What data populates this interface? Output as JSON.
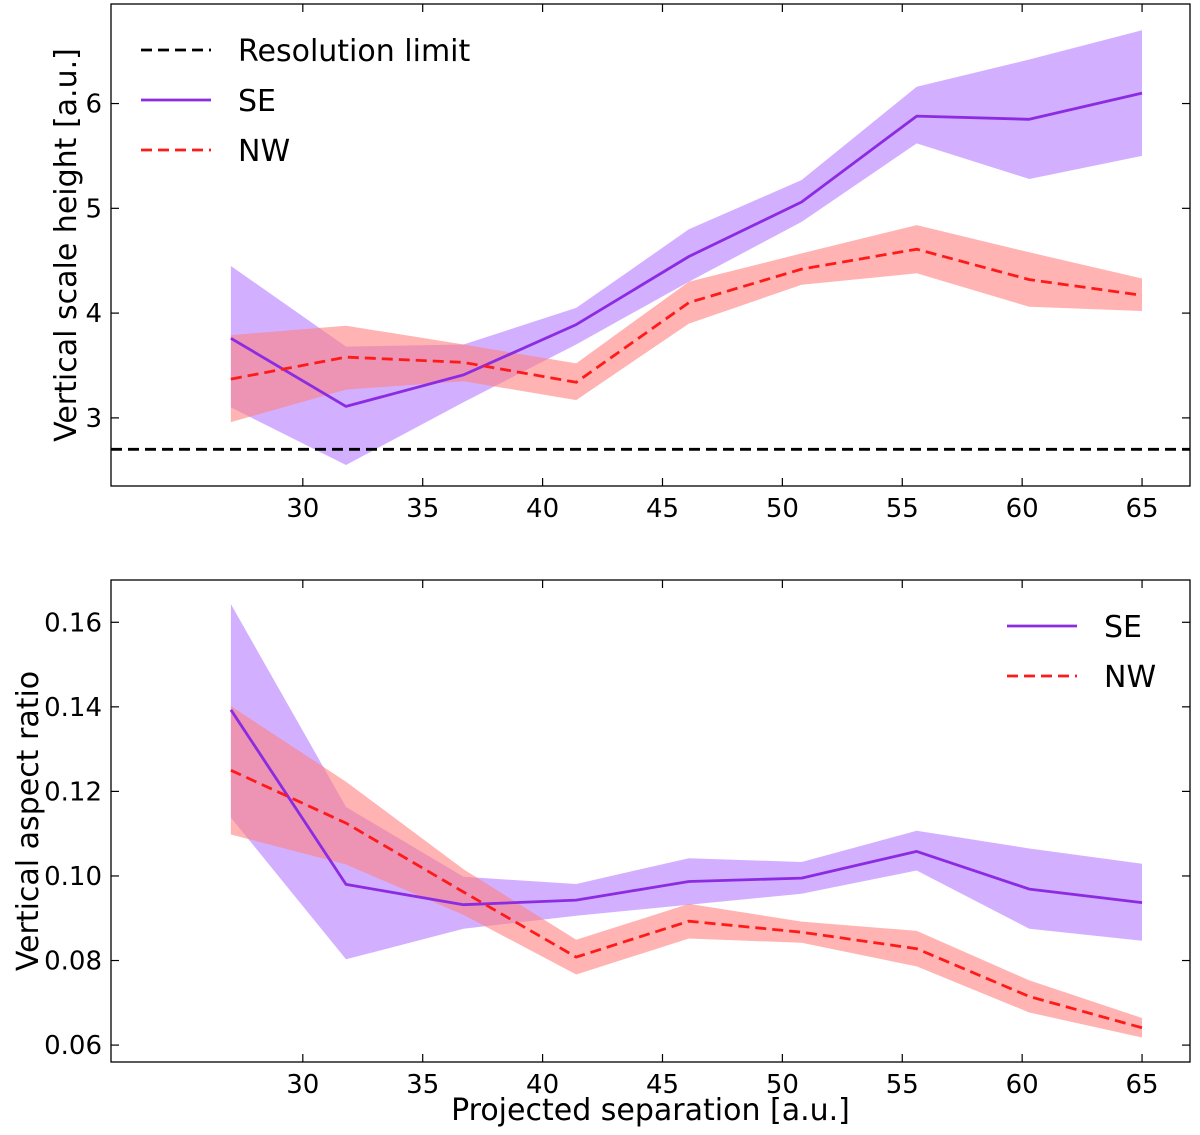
{
  "chart_data": [
    {
      "type": "line",
      "title": "",
      "xlabel": "",
      "ylabel": "Vertical scale height [a.u.]",
      "xlim": [
        22,
        67
      ],
      "ylim": [
        2.35,
        6.95
      ],
      "xticks": [
        30,
        35,
        40,
        45,
        50,
        55,
        60,
        65
      ],
      "xtick_labels": [
        "30",
        "35",
        "40",
        "45",
        "50",
        "55",
        "60",
        "65"
      ],
      "yticks": [
        3,
        4,
        5,
        6
      ],
      "ytick_labels": [
        "3",
        "4",
        "5",
        "6"
      ],
      "grid": false,
      "legend": {
        "position": "top-left",
        "entries": [
          "Resolution limit",
          "SE",
          "NW"
        ]
      },
      "hline": {
        "name": "Resolution limit",
        "y": 2.7,
        "color": "#000000",
        "style": "dashed"
      },
      "x": [
        27.0,
        31.8,
        36.7,
        41.4,
        46.1,
        50.8,
        55.6,
        60.3,
        65.0
      ],
      "series": [
        {
          "name": "SE",
          "color": "#8b2be2",
          "band_color": "#b57cff",
          "style": "solid",
          "values": [
            3.76,
            3.11,
            3.41,
            3.89,
            4.54,
            5.06,
            5.88,
            5.85,
            6.1
          ],
          "lower": [
            3.1,
            2.55,
            3.15,
            3.7,
            4.3,
            4.87,
            5.62,
            5.28,
            5.5
          ],
          "upper": [
            4.45,
            3.68,
            3.7,
            4.05,
            4.8,
            5.27,
            6.16,
            6.42,
            6.7
          ]
        },
        {
          "name": "NW",
          "color": "#ff1a1a",
          "band_color": "#ff8080",
          "style": "dashed",
          "values": [
            3.37,
            3.58,
            3.53,
            3.34,
            4.1,
            4.42,
            4.61,
            4.32,
            4.17
          ],
          "lower": [
            2.96,
            3.27,
            3.35,
            3.17,
            3.9,
            4.27,
            4.38,
            4.06,
            4.02
          ],
          "upper": [
            3.79,
            3.88,
            3.7,
            3.52,
            4.3,
            4.57,
            4.84,
            4.58,
            4.33
          ]
        }
      ]
    },
    {
      "type": "line",
      "title": "",
      "xlabel": "Projected separation [a.u.]",
      "ylabel": "Vertical aspect ratio",
      "xlim": [
        22,
        67
      ],
      "ylim": [
        0.056,
        0.17
      ],
      "xticks": [
        30,
        35,
        40,
        45,
        50,
        55,
        60,
        65
      ],
      "xtick_labels": [
        "30",
        "35",
        "40",
        "45",
        "50",
        "55",
        "60",
        "65"
      ],
      "yticks": [
        0.06,
        0.08,
        0.1,
        0.12,
        0.14,
        0.16
      ],
      "ytick_labels": [
        "0.06",
        "0.08",
        "0.10",
        "0.12",
        "0.14",
        "0.16"
      ],
      "grid": false,
      "legend": {
        "position": "top-right",
        "entries": [
          "SE",
          "NW"
        ]
      },
      "x": [
        27.0,
        31.8,
        36.7,
        41.4,
        46.1,
        50.8,
        55.6,
        60.3,
        65.0
      ],
      "series": [
        {
          "name": "SE",
          "color": "#8b2be2",
          "band_color": "#b57cff",
          "style": "solid",
          "values": [
            0.1393,
            0.098,
            0.0932,
            0.0943,
            0.0987,
            0.0995,
            0.1058,
            0.0969,
            0.0937
          ],
          "lower": [
            0.1138,
            0.0803,
            0.0875,
            0.0906,
            0.0932,
            0.0958,
            0.1013,
            0.0875,
            0.0847
          ],
          "upper": [
            0.1643,
            0.1163,
            0.0998,
            0.0981,
            0.1042,
            0.1033,
            0.1107,
            0.1065,
            0.1029
          ]
        },
        {
          "name": "NW",
          "color": "#ff1a1a",
          "band_color": "#ff8080",
          "style": "dashed",
          "values": [
            0.125,
            0.1125,
            0.0962,
            0.0808,
            0.0893,
            0.0867,
            0.0828,
            0.0715,
            0.0641
          ],
          "lower": [
            0.1098,
            0.1027,
            0.0908,
            0.0767,
            0.0852,
            0.0842,
            0.0786,
            0.0677,
            0.0618
          ],
          "upper": [
            0.1402,
            0.1223,
            0.1016,
            0.0849,
            0.0934,
            0.0892,
            0.087,
            0.0753,
            0.0664
          ]
        }
      ]
    }
  ]
}
